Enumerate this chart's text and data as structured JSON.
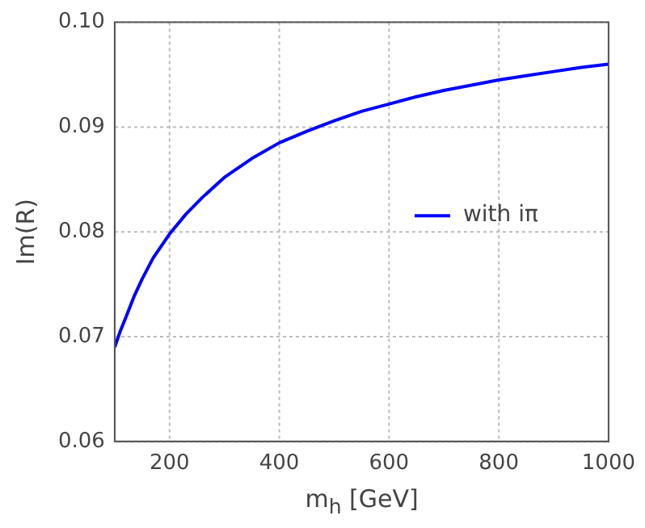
{
  "chart_data": {
    "type": "line",
    "xlabel": "m$_{h}$ [GeV]",
    "ylabel": "Im(R)",
    "series": [
      {
        "name": "with iπ",
        "color": "#0000ff",
        "x": [
          100,
          110,
          120,
          135,
          150,
          170,
          200,
          230,
          260,
          300,
          350,
          400,
          450,
          500,
          550,
          600,
          650,
          700,
          750,
          800,
          850,
          900,
          950,
          1000
        ],
        "values": [
          0.069,
          0.0705,
          0.0718,
          0.0738,
          0.0755,
          0.0775,
          0.0798,
          0.0817,
          0.0833,
          0.0852,
          0.087,
          0.0885,
          0.0896,
          0.0906,
          0.0915,
          0.0922,
          0.0929,
          0.0935,
          0.094,
          0.0945,
          0.0949,
          0.0953,
          0.0957,
          0.096
        ]
      }
    ],
    "xlim": [
      100,
      1000
    ],
    "xticks": [
      200,
      400,
      600,
      800,
      1000
    ],
    "ylim": [
      0.06,
      0.1
    ],
    "yticks": [
      0.06,
      0.07,
      0.08,
      0.09,
      {
        "value": 0.1,
        "label": "0.10"
      }
    ],
    "grid": true,
    "legend": "right",
    "marker": "none",
    "line_style": "solid"
  }
}
